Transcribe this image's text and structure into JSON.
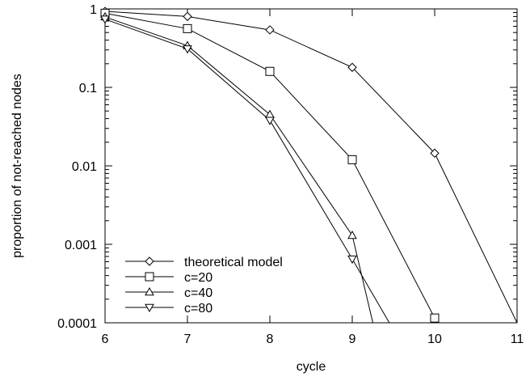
{
  "chart_data": {
    "type": "line",
    "title": "",
    "xlabel": "cycle",
    "ylabel": "proportion of not-reached nodes",
    "xlim": [
      6,
      11
    ],
    "ylim": [
      0.0001,
      1
    ],
    "yscale": "log",
    "grid": false,
    "legend_position": "bottom-left",
    "x_ticks": [
      6,
      7,
      8,
      9,
      10,
      11
    ],
    "x_tick_labels": [
      "6",
      "7",
      "8",
      "9",
      "10",
      "11"
    ],
    "y_ticks": [
      0.0001,
      0.001,
      0.01,
      0.1,
      1
    ],
    "y_tick_labels": [
      "0.0001",
      "0.001",
      "0.01",
      "0.1",
      "1"
    ],
    "series": [
      {
        "name": "theoretical model",
        "marker": "diamond",
        "x": [
          6,
          7,
          8,
          9,
          10,
          11
        ],
        "y": [
          0.93,
          0.8,
          0.54,
          0.18,
          0.0145,
          0.0001
        ]
      },
      {
        "name": "c=20",
        "marker": "square",
        "x": [
          6,
          7,
          8,
          9,
          10
        ],
        "y": [
          0.88,
          0.56,
          0.16,
          0.012,
          0.000115
        ]
      },
      {
        "name": "c=40",
        "marker": "triangle-up",
        "x": [
          6,
          7,
          8,
          9,
          9.25
        ],
        "y": [
          0.79,
          0.34,
          0.045,
          0.0013,
          0.0001
        ]
      },
      {
        "name": "c=80",
        "marker": "triangle-down",
        "x": [
          6,
          7,
          8,
          9,
          9.45
        ],
        "y": [
          0.74,
          0.31,
          0.038,
          0.00065,
          0.0001
        ]
      }
    ]
  }
}
